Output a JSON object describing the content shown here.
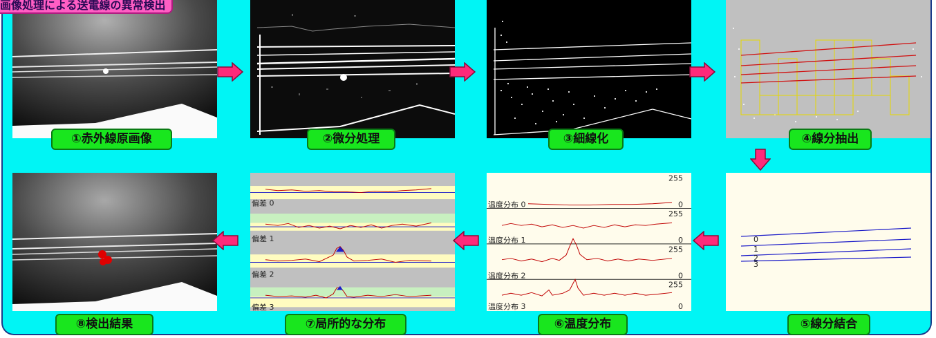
{
  "title": "画像処理による送電線の異常検出",
  "steps": [
    {
      "label": "①赤外線原画像"
    },
    {
      "label": "②微分処理"
    },
    {
      "label": "③細線化"
    },
    {
      "label": "④線分抽出"
    },
    {
      "label": "⑤線分結合"
    },
    {
      "label": "⑥温度分布"
    },
    {
      "label": "⑦局所的な分布"
    },
    {
      "label": "⑧検出結果"
    }
  ],
  "temperature_panel": {
    "rows": [
      {
        "label": "温度分布 0",
        "max": "255",
        "min": "0"
      },
      {
        "label": "温度分布 1",
        "max": "255",
        "min": "0"
      },
      {
        "label": "温度分布 2",
        "max": "255",
        "min": "0"
      },
      {
        "label": "温度分布 3",
        "max": "255",
        "min": "0"
      }
    ]
  },
  "local_panel": {
    "rows": [
      {
        "label": "偏差 0"
      },
      {
        "label": "偏差 1"
      },
      {
        "label": "偏差 2"
      },
      {
        "label": "偏差 3"
      }
    ]
  },
  "segment_panel": {
    "line_labels": [
      "0",
      "1",
      "2",
      "3"
    ]
  },
  "colors": {
    "frame_bg": "#00f5f5",
    "title_bg": "#ff5ec4",
    "label_bg": "#19e61e",
    "arrow": "#ff2a7a",
    "trace": "#c00000",
    "segment_line": "#1c1cc8"
  }
}
